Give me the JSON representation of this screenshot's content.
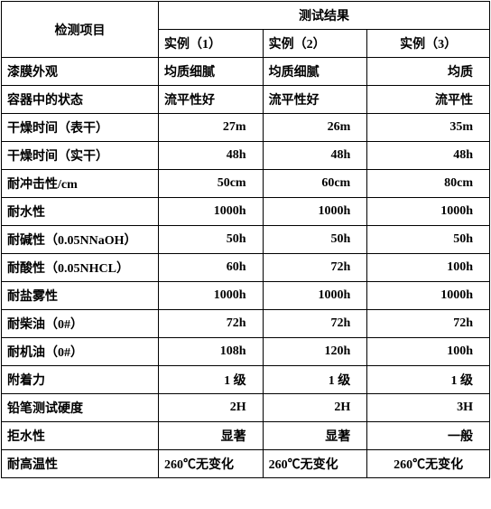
{
  "header": {
    "item_col": "检测项目",
    "results_col": "测试结果",
    "sub_headers": [
      "实例（1）",
      "实例（2）",
      "实例（3）"
    ]
  },
  "rows": [
    {
      "label": "漆膜外观",
      "v1": "均质细腻",
      "v2": "均质细腻",
      "v3": "均质",
      "a1": "left",
      "a2": "left",
      "a3": "right"
    },
    {
      "label": "容器中的状态",
      "v1": "流平性好",
      "v2": "流平性好",
      "v3": "流平性",
      "a1": "left",
      "a2": "left",
      "a3": "right"
    },
    {
      "label": "干燥时间（表干）",
      "v1": "27m",
      "v2": "26m",
      "v3": "35m",
      "a1": "right",
      "a2": "right",
      "a3": "right"
    },
    {
      "label": "干燥时间（实干）",
      "v1": "48h",
      "v2": "48h",
      "v3": "48h",
      "a1": "right",
      "a2": "right",
      "a3": "right"
    },
    {
      "label": "耐冲击性/cm",
      "v1": "50cm",
      "v2": "60cm",
      "v3": "80cm",
      "a1": "right",
      "a2": "right",
      "a3": "right"
    },
    {
      "label": "耐水性",
      "v1": "1000h",
      "v2": "1000h",
      "v3": "1000h",
      "a1": "right",
      "a2": "right",
      "a3": "right"
    },
    {
      "label": "耐碱性（0.05NNaOH）",
      "v1": "50h",
      "v2": "50h",
      "v3": "50h",
      "a1": "right",
      "a2": "right",
      "a3": "right"
    },
    {
      "label": "耐酸性（0.05NHCL）",
      "v1": "60h",
      "v2": "72h",
      "v3": "100h",
      "a1": "right",
      "a2": "right",
      "a3": "right"
    },
    {
      "label": "耐盐雾性",
      "v1": "1000h",
      "v2": "1000h",
      "v3": "1000h",
      "a1": "right",
      "a2": "right",
      "a3": "right"
    },
    {
      "label": "耐柴油（0#）",
      "v1": "72h",
      "v2": "72h",
      "v3": "72h",
      "a1": "right",
      "a2": "right",
      "a3": "right"
    },
    {
      "label": "耐机油（0#）",
      "v1": "108h",
      "v2": "120h",
      "v3": "100h",
      "a1": "right",
      "a2": "right",
      "a3": "right"
    },
    {
      "label": "附着力",
      "v1": "1 级",
      "v2": "1 级",
      "v3": "1 级",
      "a1": "right",
      "a2": "right",
      "a3": "right"
    },
    {
      "label": "铅笔测试硬度",
      "v1": "2H",
      "v2": "2H",
      "v3": "3H",
      "a1": "right",
      "a2": "right",
      "a3": "right"
    },
    {
      "label": "拒水性",
      "v1": "显著",
      "v2": "显著",
      "v3": "一般",
      "a1": "right",
      "a2": "right",
      "a3": "right"
    },
    {
      "label": "耐高温性",
      "v1": "260℃无变化",
      "v2": "260℃无变化",
      "v3": "260℃无变化",
      "a1": "left",
      "a2": "left",
      "a3": "center"
    }
  ]
}
